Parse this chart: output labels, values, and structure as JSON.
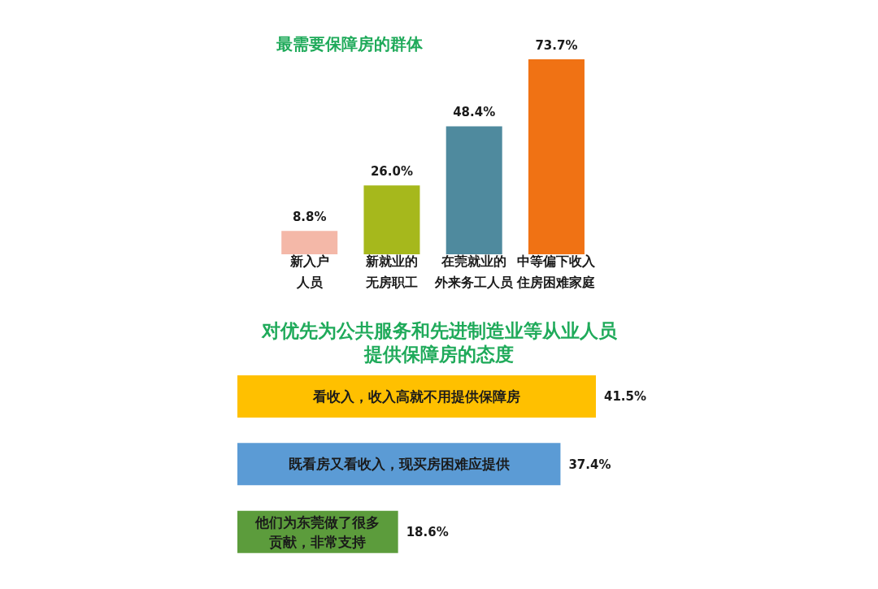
{
  "chart_data": [
    {
      "type": "bar",
      "title": "最需要保障房的群体",
      "categories": [
        "新入户人员",
        "新就业的无房职工",
        "在莞就业的外来务工人员",
        "中等偏下收入住房困难家庭"
      ],
      "values": [
        8.8,
        26.0,
        48.4,
        73.7
      ],
      "colors": [
        "#f4b8a8",
        "#a6b81c",
        "#4f8a9e",
        "#f07214"
      ],
      "value_labels": [
        "8.8%",
        "26.0%",
        "48.4%",
        "73.7%"
      ],
      "tick_labels": "x"
    },
    {
      "type": "bar",
      "orientation": "horizontal",
      "title": "对优先为公共服务和先进制造业等从业人员提供保障房的态度",
      "categories": [
        "看收入，收入高就不用提供保障房",
        "既看房又看收入，现买房困难应提供",
        "他们为东莞做了很多贡献，非常支持"
      ],
      "values": [
        41.5,
        37.4,
        18.6
      ],
      "colors": [
        "#ffc000",
        "#5b9bd5",
        "#5c9c3c"
      ],
      "value_labels": [
        "41.5%",
        "37.4%",
        "18.6%"
      ],
      "tick_labels": "y"
    }
  ]
}
